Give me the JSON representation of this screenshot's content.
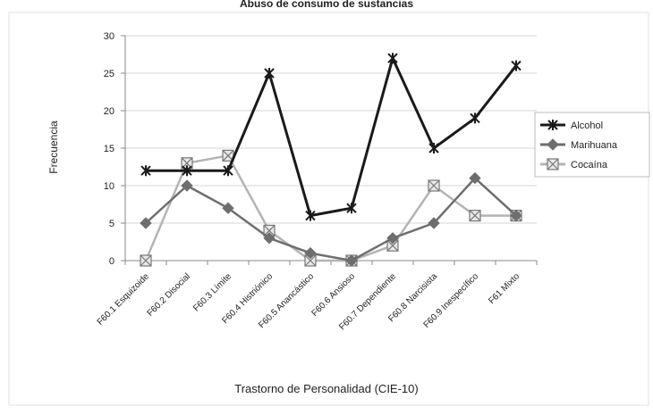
{
  "chart_data": {
    "type": "line",
    "title": "Abuso de consumo de sustancias",
    "xlabel": "Trastorno de Personalidad (CIE-10)",
    "ylabel": "Frecuencia",
    "ylim": [
      0,
      30
    ],
    "yticks": [
      0,
      5,
      10,
      15,
      20,
      25,
      30
    ],
    "grid": true,
    "legend_position": "right",
    "categories": [
      "F60.1 Esquizoide",
      "F60.2 Disocial",
      "F60.3 Límite",
      "F60.4 Histriónico",
      "F60.5 Anancástico",
      "F60.6 Ansioso",
      "F60.7 Dependiente",
      "F60.8 Narcisista",
      "F60.9 Inespecífico",
      "F61 Mixto"
    ],
    "series": [
      {
        "name": "Alcohol",
        "color": "#1a1a1a",
        "marker": "cross",
        "values": [
          12,
          12,
          12,
          25,
          6,
          7,
          27,
          15,
          19,
          26
        ]
      },
      {
        "name": "Marihuana",
        "color": "#6e6e6e",
        "marker": "diamond",
        "values": [
          5,
          10,
          7,
          3,
          1,
          0,
          3,
          5,
          11,
          6
        ]
      },
      {
        "name": "Cocaína",
        "color": "#b4b4b4",
        "marker": "square-x",
        "values": [
          0,
          13,
          14,
          4,
          0,
          0,
          2,
          10,
          6,
          6
        ]
      }
    ]
  }
}
